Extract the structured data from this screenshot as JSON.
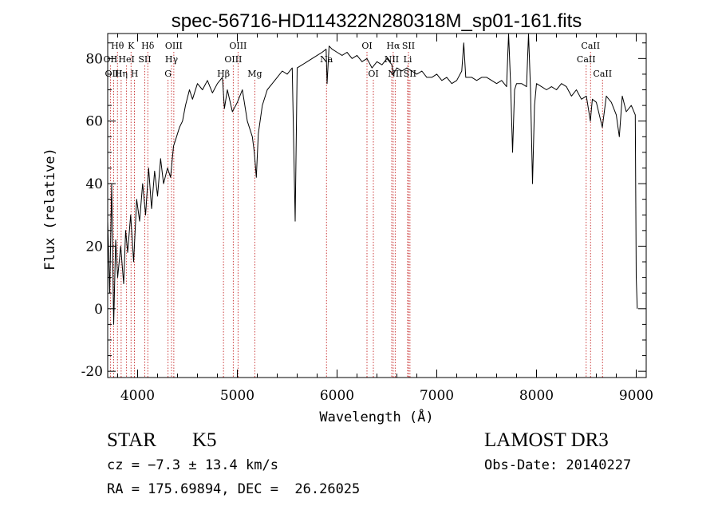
{
  "chart_data": {
    "type": "line",
    "title": "spec-56716-HD114322N280318M_sp01-161.fits",
    "xlabel": "Wavelength (Å)",
    "ylabel": "Flux (relative)",
    "xlim": [
      3700,
      9100
    ],
    "ylim": [
      -22,
      88
    ],
    "xticks": [
      4000,
      5000,
      6000,
      7000,
      8000,
      9000
    ],
    "yticks": [
      -20,
      0,
      20,
      40,
      60,
      80
    ],
    "grid": false,
    "series": [
      {
        "name": "flux",
        "points": [
          [
            3700,
            28
          ],
          [
            3720,
            5
          ],
          [
            3740,
            40
          ],
          [
            3760,
            -5
          ],
          [
            3780,
            22
          ],
          [
            3800,
            10
          ],
          [
            3830,
            20
          ],
          [
            3860,
            8
          ],
          [
            3880,
            25
          ],
          [
            3900,
            18
          ],
          [
            3930,
            30
          ],
          [
            3960,
            15
          ],
          [
            3990,
            35
          ],
          [
            4020,
            28
          ],
          [
            4050,
            40
          ],
          [
            4080,
            30
          ],
          [
            4110,
            45
          ],
          [
            4140,
            32
          ],
          [
            4170,
            44
          ],
          [
            4200,
            36
          ],
          [
            4230,
            48
          ],
          [
            4260,
            40
          ],
          [
            4300,
            45
          ],
          [
            4330,
            42
          ],
          [
            4360,
            52
          ],
          [
            4390,
            55
          ],
          [
            4420,
            58
          ],
          [
            4450,
            60
          ],
          [
            4480,
            65
          ],
          [
            4520,
            70
          ],
          [
            4550,
            67
          ],
          [
            4600,
            72
          ],
          [
            4650,
            70
          ],
          [
            4700,
            73
          ],
          [
            4750,
            69
          ],
          [
            4800,
            72
          ],
          [
            4850,
            74
          ],
          [
            4870,
            64
          ],
          [
            4900,
            70
          ],
          [
            4950,
            63
          ],
          [
            5000,
            66
          ],
          [
            5050,
            70
          ],
          [
            5100,
            60
          ],
          [
            5150,
            55
          ],
          [
            5170,
            50
          ],
          [
            5190,
            42
          ],
          [
            5210,
            56
          ],
          [
            5250,
            65
          ],
          [
            5300,
            70
          ],
          [
            5350,
            72
          ],
          [
            5400,
            74
          ],
          [
            5450,
            76
          ],
          [
            5500,
            75
          ],
          [
            5550,
            77
          ],
          [
            5580,
            28
          ],
          [
            5600,
            77
          ],
          [
            5650,
            78
          ],
          [
            5700,
            79
          ],
          [
            5750,
            80
          ],
          [
            5800,
            81
          ],
          [
            5850,
            82
          ],
          [
            5890,
            83
          ],
          [
            5900,
            72
          ],
          [
            5920,
            84
          ],
          [
            5950,
            83
          ],
          [
            6000,
            82
          ],
          [
            6050,
            81
          ],
          [
            6100,
            82
          ],
          [
            6150,
            80
          ],
          [
            6200,
            81
          ],
          [
            6250,
            79
          ],
          [
            6300,
            80
          ],
          [
            6350,
            77
          ],
          [
            6400,
            79
          ],
          [
            6450,
            78
          ],
          [
            6500,
            80
          ],
          [
            6550,
            78
          ],
          [
            6563,
            75
          ],
          [
            6600,
            77
          ],
          [
            6650,
            76
          ],
          [
            6700,
            77
          ],
          [
            6750,
            76
          ],
          [
            6800,
            75
          ],
          [
            6850,
            76
          ],
          [
            6900,
            74
          ],
          [
            6950,
            74
          ],
          [
            7000,
            75
          ],
          [
            7050,
            73
          ],
          [
            7100,
            74
          ],
          [
            7150,
            72
          ],
          [
            7200,
            73
          ],
          [
            7250,
            76
          ],
          [
            7270,
            85
          ],
          [
            7290,
            74
          ],
          [
            7350,
            74
          ],
          [
            7400,
            73
          ],
          [
            7450,
            74
          ],
          [
            7500,
            74
          ],
          [
            7550,
            73
          ],
          [
            7600,
            72
          ],
          [
            7650,
            73
          ],
          [
            7700,
            71
          ],
          [
            7720,
            90
          ],
          [
            7740,
            72
          ],
          [
            7760,
            50
          ],
          [
            7780,
            70
          ],
          [
            7800,
            72
          ],
          [
            7850,
            72
          ],
          [
            7900,
            71
          ],
          [
            7920,
            90
          ],
          [
            7940,
            70
          ],
          [
            7960,
            40
          ],
          [
            7980,
            65
          ],
          [
            8000,
            72
          ],
          [
            8050,
            71
          ],
          [
            8100,
            70
          ],
          [
            8150,
            71
          ],
          [
            8200,
            70
          ],
          [
            8250,
            72
          ],
          [
            8300,
            71
          ],
          [
            8350,
            68
          ],
          [
            8400,
            70
          ],
          [
            8450,
            67
          ],
          [
            8500,
            68
          ],
          [
            8540,
            60
          ],
          [
            8560,
            67
          ],
          [
            8600,
            66
          ],
          [
            8660,
            58
          ],
          [
            8700,
            68
          ],
          [
            8750,
            66
          ],
          [
            8800,
            62
          ],
          [
            8830,
            55
          ],
          [
            8860,
            68
          ],
          [
            8900,
            63
          ],
          [
            8950,
            65
          ],
          [
            8990,
            62
          ],
          [
            9000,
            10
          ],
          [
            9010,
            0
          ]
        ]
      }
    ],
    "line_markers": [
      {
        "label": "Hθ",
        "x": 3798,
        "row": 0
      },
      {
        "label": "OII",
        "x": 3727,
        "row": 1
      },
      {
        "label": "OIII",
        "x": 3760,
        "row": 2
      },
      {
        "label": "Hη",
        "x": 3835,
        "row": 2
      },
      {
        "label": "K",
        "x": 3934,
        "row": 0
      },
      {
        "label": "HeI",
        "x": 3889,
        "row": 1
      },
      {
        "label": "H",
        "x": 3968,
        "row": 2
      },
      {
        "label": "SII",
        "x": 4072,
        "row": 1
      },
      {
        "label": "Hδ",
        "x": 4102,
        "row": 0
      },
      {
        "label": "OIII",
        "x": 4363,
        "row": 0
      },
      {
        "label": "Hγ",
        "x": 4340,
        "row": 1
      },
      {
        "label": "G",
        "x": 4305,
        "row": 2
      },
      {
        "label": "Hβ",
        "x": 4861,
        "row": 2
      },
      {
        "label": "OIII",
        "x": 5007,
        "row": 0
      },
      {
        "label": "OIII",
        "x": 4959,
        "row": 1
      },
      {
        "label": "Mg",
        "x": 5175,
        "row": 2
      },
      {
        "label": "Na",
        "x": 5894,
        "row": 1
      },
      {
        "label": "OI",
        "x": 6300,
        "row": 0
      },
      {
        "label": "OI",
        "x": 6364,
        "row": 2
      },
      {
        "label": "Hα",
        "x": 6563,
        "row": 0
      },
      {
        "label": "SII",
        "x": 6716,
        "row": 0
      },
      {
        "label": "NII",
        "x": 6548,
        "row": 1
      },
      {
        "label": "Li",
        "x": 6708,
        "row": 1
      },
      {
        "label": "NII",
        "x": 6583,
        "row": 2
      },
      {
        "label": "SII",
        "x": 6731,
        "row": 2
      },
      {
        "label": "CaII",
        "x": 8542,
        "row": 0
      },
      {
        "label": "CaII",
        "x": 8498,
        "row": 1
      },
      {
        "label": "CaII",
        "x": 8662,
        "row": 2
      }
    ],
    "marker_color": "#c62828"
  },
  "info": {
    "object_class": "STAR",
    "subclass": "K5",
    "redshift": "cz = −7.3 ± 13.4 km/s",
    "coords": "RA = 175.69894, DEC =  26.26025",
    "survey": "LAMOST DR3",
    "obs_date": "Obs-Date: 20140227"
  }
}
